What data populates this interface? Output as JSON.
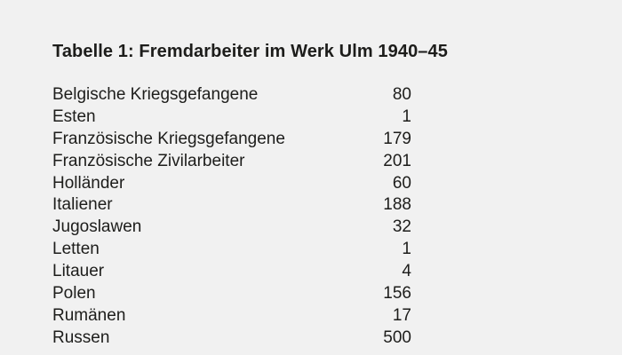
{
  "title": "Tabelle 1: Fremdarbeiter im Werk Ulm 1940–45",
  "rows": [
    {
      "label": "Belgische Kriegsgefangene",
      "count": "80"
    },
    {
      "label": "Esten",
      "count": "1"
    },
    {
      "label": "Französische Kriegsgefangene",
      "count": "179"
    },
    {
      "label": "Französische Zivilarbeiter",
      "count": "201"
    },
    {
      "label": "Holländer",
      "count": "60"
    },
    {
      "label": "Italiener",
      "count": "188"
    },
    {
      "label": "Jugoslawen",
      "count": "32"
    },
    {
      "label": "Letten",
      "count": "1"
    },
    {
      "label": "Litauer",
      "count": "4"
    },
    {
      "label": "Polen",
      "count": "156"
    },
    {
      "label": "Rumänen",
      "count": "17"
    },
    {
      "label": "Russen",
      "count": "500"
    }
  ]
}
